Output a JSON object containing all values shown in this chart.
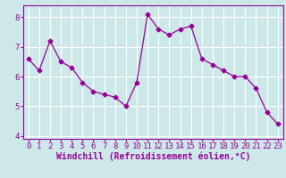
{
  "x": [
    0,
    1,
    2,
    3,
    4,
    5,
    6,
    7,
    8,
    9,
    10,
    11,
    12,
    13,
    14,
    15,
    16,
    17,
    18,
    19,
    20,
    21,
    22,
    23
  ],
  "y": [
    6.6,
    6.2,
    7.2,
    6.5,
    6.3,
    5.8,
    5.5,
    5.4,
    5.3,
    5.0,
    5.8,
    8.1,
    7.6,
    7.4,
    7.6,
    7.7,
    6.6,
    6.4,
    6.2,
    6.0,
    6.0,
    5.6,
    4.8,
    4.4
  ],
  "xlabel": "Windchill (Refroidissement éolien,°C)",
  "ylim": [
    3.9,
    8.4
  ],
  "yticks": [
    4,
    5,
    6,
    7,
    8
  ],
  "xticks": [
    0,
    1,
    2,
    3,
    4,
    5,
    6,
    7,
    8,
    9,
    10,
    11,
    12,
    13,
    14,
    15,
    16,
    17,
    18,
    19,
    20,
    21,
    22,
    23
  ],
  "line_color": "#990099",
  "marker": "D",
  "marker_size": 2.5,
  "background_color": "#cce8e8",
  "grid_color": "#ffffff",
  "tick_color": "#990099",
  "label_color": "#990099",
  "xlabel_fontsize": 7,
  "tick_fontsize": 6.5,
  "spine_color": "#990099"
}
